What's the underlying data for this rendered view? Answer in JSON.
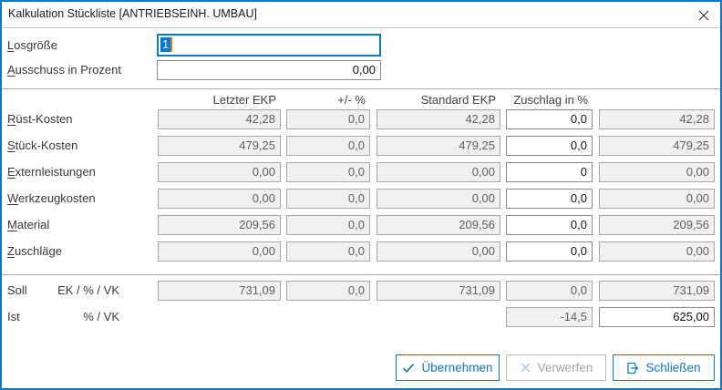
{
  "window": {
    "title": "Kalkulation Stückliste [ANTRIEBSEINH. UMBAU]"
  },
  "params": {
    "losgroesse": {
      "label": "Losgröße",
      "value": "1"
    },
    "ausschuss": {
      "label": "Ausschuss in Prozent",
      "value": "0,00"
    }
  },
  "table": {
    "headers": {
      "letzter": "Letzter EKP",
      "diff": "+/- %",
      "standard": "Standard EKP",
      "zuschlag": "Zuschlag in %"
    },
    "rows": [
      {
        "label": "Rüst-Kosten",
        "letzter": "42,28",
        "diff": "0,0",
        "standard": "42,28",
        "zuschlag": "0,0",
        "wert": "42,28"
      },
      {
        "label": "Stück-Kosten",
        "letzter": "479,25",
        "diff": "0,0",
        "standard": "479,25",
        "zuschlag": "0,0",
        "wert": "479,25"
      },
      {
        "label": "Externleistungen",
        "letzter": "0,00",
        "diff": "0,0",
        "standard": "0,00",
        "zuschlag": "0",
        "wert": "0,00"
      },
      {
        "label": "Werkzeugkosten",
        "letzter": "0,00",
        "diff": "0,0",
        "standard": "0,00",
        "zuschlag": "0,0",
        "wert": "0,00"
      },
      {
        "label": "Material",
        "letzter": "209,56",
        "diff": "0,0",
        "standard": "209,56",
        "zuschlag": "0,0",
        "wert": "209,56"
      },
      {
        "label": "Zuschläge",
        "letzter": "0,00",
        "diff": "0,0",
        "standard": "0,00",
        "zuschlag": "0,0",
        "wert": "0,00"
      }
    ]
  },
  "totals": {
    "soll": {
      "label": "Soll",
      "sublabel": "EK / % / VK",
      "letzter": "731,09",
      "diff": "0,0",
      "standard": "731,09",
      "zuschlag": "0,0",
      "wert": "731,09"
    },
    "ist": {
      "label": "Ist",
      "sublabel": "% / VK",
      "zuschlag": "-14,5",
      "wert": "625,00"
    }
  },
  "buttons": {
    "uebernehmen": {
      "label": "Übernehmen",
      "icon": "check-icon",
      "enabled": "true"
    },
    "verwerfen": {
      "label": "Verwerfen",
      "icon": "x-icon",
      "enabled": "false"
    },
    "schliessen": {
      "label": "Schließen",
      "icon": "exit-icon",
      "enabled": "true"
    }
  },
  "colors": {
    "accent_blue": "#0e78c0",
    "selection_blue": "#0078d7",
    "caret_orange": "#e8741c",
    "readonly_bg": "#f0f0f0",
    "readonly_border": "#a6a6a6",
    "readonly_text": "#5f5f5f"
  }
}
